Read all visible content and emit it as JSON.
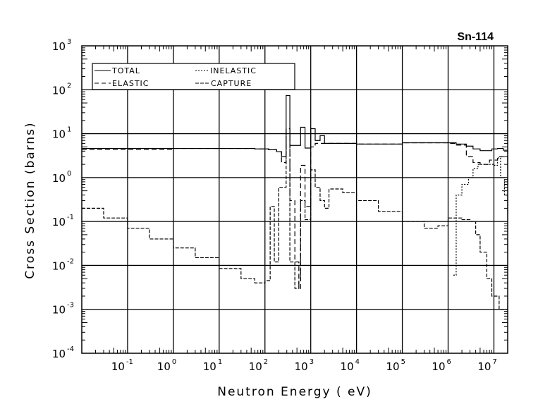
{
  "chart_data": {
    "type": "line",
    "title": "Sn-114",
    "xlabel": "Neutron Energy ( eV)",
    "ylabel": "Cross Section (barns)",
    "xscale": "log",
    "yscale": "log",
    "xlim": [
      0.01,
      20000000
    ],
    "ylim": [
      0.0001,
      1000
    ],
    "grid": true,
    "legend_position": "top-left",
    "x_tick_labels": [
      {
        "base": "10",
        "exp": "-1",
        "value": 0.1
      },
      {
        "base": "10",
        "exp": "0",
        "value": 1
      },
      {
        "base": "10",
        "exp": "1",
        "value": 10
      },
      {
        "base": "10",
        "exp": "2",
        "value": 100
      },
      {
        "base": "10",
        "exp": "3",
        "value": 1000
      },
      {
        "base": "10",
        "exp": "4",
        "value": 10000
      },
      {
        "base": "10",
        "exp": "5",
        "value": 100000
      },
      {
        "base": "10",
        "exp": "6",
        "value": 1000000
      },
      {
        "base": "10",
        "exp": "7",
        "value": 10000000
      }
    ],
    "y_tick_labels": [
      {
        "base": "10",
        "exp": "3",
        "value": 1000
      },
      {
        "base": "10",
        "exp": "2",
        "value": 100
      },
      {
        "base": "10",
        "exp": "1",
        "value": 10
      },
      {
        "base": "10",
        "exp": "0",
        "value": 1
      },
      {
        "base": "10",
        "exp": "-1",
        "value": 0.1
      },
      {
        "base": "10",
        "exp": "-2",
        "value": 0.01
      },
      {
        "base": "10",
        "exp": "-3",
        "value": 0.001
      },
      {
        "base": "10",
        "exp": "-4",
        "value": 0.0001
      }
    ],
    "series": [
      {
        "name": "TOTAL",
        "dash": "solid",
        "points": [
          [
            0.01,
            4.6
          ],
          [
            1,
            4.6
          ],
          [
            60,
            4.5
          ],
          [
            120,
            4.3
          ],
          [
            180,
            3.9
          ],
          [
            230,
            3.0
          ],
          [
            290,
            74
          ],
          [
            350,
            5.4
          ],
          [
            600,
            14
          ],
          [
            750,
            4.7
          ],
          [
            1000,
            13
          ],
          [
            1250,
            7
          ],
          [
            1600,
            9
          ],
          [
            2000,
            6
          ],
          [
            10000,
            5.8
          ],
          [
            100000,
            6.2
          ],
          [
            1000000,
            6.2
          ],
          [
            1500000,
            5.8
          ],
          [
            2500000,
            5.2
          ],
          [
            3500000,
            4.5
          ],
          [
            5000000,
            4.1
          ],
          [
            9000000,
            4.5
          ],
          [
            12000000,
            4.6
          ],
          [
            16000000,
            4.2
          ],
          [
            20000000,
            3.6
          ]
        ]
      },
      {
        "name": "ELASTIC",
        "dash": "dashed",
        "points": [
          [
            0.01,
            4.4
          ],
          [
            1,
            4.6
          ],
          [
            60,
            4.5
          ],
          [
            120,
            4.3
          ],
          [
            180,
            3.9
          ],
          [
            230,
            2.2
          ],
          [
            290,
            13
          ],
          [
            350,
            0.3
          ],
          [
            450,
            0.012
          ],
          [
            550,
            0.003
          ],
          [
            600,
            1.9
          ],
          [
            750,
            0.22
          ],
          [
            1000,
            5
          ],
          [
            1250,
            6
          ],
          [
            2000,
            6
          ],
          [
            10000,
            5.8
          ],
          [
            100000,
            6.2
          ],
          [
            1000000,
            6.0
          ],
          [
            1500000,
            5.5
          ],
          [
            2500000,
            3.0
          ],
          [
            3500000,
            2.2
          ],
          [
            5000000,
            2.0
          ],
          [
            8000000,
            2.5
          ],
          [
            12000000,
            3.0
          ],
          [
            20000000,
            2.2
          ]
        ]
      },
      {
        "name": "INELASTIC",
        "dash": "dotted",
        "points": [
          [
            1300000,
            0.006
          ],
          [
            1500000,
            0.4
          ],
          [
            2000000,
            0.7
          ],
          [
            2800000,
            1.0
          ],
          [
            3500000,
            1.6
          ],
          [
            4500000,
            2.0
          ],
          [
            8000000,
            2.0
          ],
          [
            10000000,
            1.9
          ],
          [
            12000000,
            2.8
          ],
          [
            14000000,
            1.0
          ],
          [
            17000000,
            0.4
          ],
          [
            20000000,
            0.15
          ]
        ]
      },
      {
        "name": "CAPTURE",
        "dash": "dash-dot",
        "points": [
          [
            0.01,
            0.2
          ],
          [
            0.03,
            0.12
          ],
          [
            0.1,
            0.07
          ],
          [
            0.3,
            0.04
          ],
          [
            1,
            0.025
          ],
          [
            3,
            0.015
          ],
          [
            10,
            0.0085
          ],
          [
            30,
            0.005
          ],
          [
            60,
            0.004
          ],
          [
            100,
            0.0045
          ],
          [
            130,
            0.22
          ],
          [
            160,
            0.012
          ],
          [
            200,
            0.6
          ],
          [
            290,
            10
          ],
          [
            350,
            0.012
          ],
          [
            450,
            0.003
          ],
          [
            550,
            0.0045
          ],
          [
            600,
            0.3
          ],
          [
            750,
            0.11
          ],
          [
            1000,
            1.5
          ],
          [
            1250,
            0.6
          ],
          [
            1600,
            0.3
          ],
          [
            2000,
            0.2
          ],
          [
            2500,
            0.55
          ],
          [
            5000,
            0.45
          ],
          [
            10000,
            0.3
          ],
          [
            30000,
            0.17
          ],
          [
            100000,
            0.1
          ],
          [
            300000,
            0.07
          ],
          [
            600000,
            0.08
          ],
          [
            1000000,
            0.12
          ],
          [
            2000000,
            0.11
          ],
          [
            3000000,
            0.1
          ],
          [
            4000000,
            0.05
          ],
          [
            5000000,
            0.02
          ],
          [
            7000000,
            0.005
          ],
          [
            9000000,
            0.002
          ],
          [
            13000000,
            0.001
          ],
          [
            20000000,
            0.0012
          ]
        ]
      }
    ]
  }
}
